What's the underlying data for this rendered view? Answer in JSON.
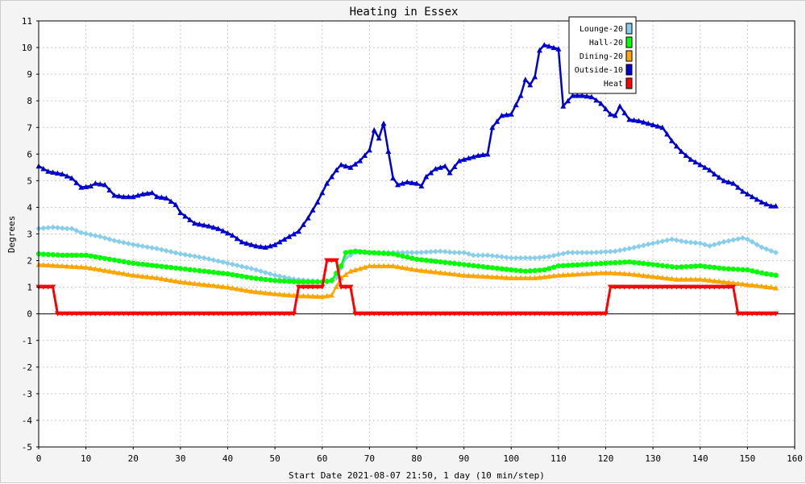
{
  "chart_data": {
    "type": "line",
    "title": "Heating in Essex",
    "xlabel": "Start Date 2021-08-07 21:50, 1 day (10 min/step)",
    "ylabel": "Degrees",
    "xlim": [
      0,
      160
    ],
    "ylim": [
      -5,
      11
    ],
    "x_ticks": [
      0,
      10,
      20,
      30,
      40,
      50,
      60,
      70,
      80,
      90,
      100,
      110,
      120,
      130,
      140,
      150,
      160
    ],
    "y_ticks": [
      -5,
      -4,
      -3,
      -2,
      -1,
      0,
      1,
      2,
      3,
      4,
      5,
      6,
      7,
      8,
      9,
      10,
      11
    ],
    "grid": true,
    "legend_position": "top-right",
    "series": [
      {
        "name": "Lounge-20",
        "color": "#87ceeb",
        "marker": "diamond",
        "points": [
          [
            0,
            3.2
          ],
          [
            3,
            3.25
          ],
          [
            6,
            3.2
          ],
          [
            7,
            3.2
          ],
          [
            9,
            3.05
          ],
          [
            13,
            2.9
          ],
          [
            16,
            2.75
          ],
          [
            20,
            2.6
          ],
          [
            25,
            2.45
          ],
          [
            30,
            2.25
          ],
          [
            35,
            2.1
          ],
          [
            40,
            1.9
          ],
          [
            45,
            1.7
          ],
          [
            50,
            1.45
          ],
          [
            54,
            1.3
          ],
          [
            57,
            1.25
          ],
          [
            61,
            1.2
          ],
          [
            63,
            1.35
          ],
          [
            65,
            2.1
          ],
          [
            67,
            2.3
          ],
          [
            70,
            2.3
          ],
          [
            75,
            2.3
          ],
          [
            80,
            2.3
          ],
          [
            85,
            2.35
          ],
          [
            88,
            2.3
          ],
          [
            90,
            2.3
          ],
          [
            92,
            2.2
          ],
          [
            95,
            2.2
          ],
          [
            100,
            2.1
          ],
          [
            105,
            2.1
          ],
          [
            108,
            2.15
          ],
          [
            112,
            2.3
          ],
          [
            117,
            2.3
          ],
          [
            122,
            2.35
          ],
          [
            125,
            2.45
          ],
          [
            130,
            2.65
          ],
          [
            134,
            2.8
          ],
          [
            137,
            2.7
          ],
          [
            140,
            2.65
          ],
          [
            142,
            2.55
          ],
          [
            145,
            2.7
          ],
          [
            149,
            2.85
          ],
          [
            150,
            2.8
          ],
          [
            153,
            2.5
          ],
          [
            156,
            2.3
          ]
        ]
      },
      {
        "name": "Hall-20",
        "color": "#00ff00",
        "marker": "circle",
        "points": [
          [
            0,
            2.25
          ],
          [
            5,
            2.2
          ],
          [
            10,
            2.2
          ],
          [
            15,
            2.05
          ],
          [
            20,
            1.9
          ],
          [
            25,
            1.8
          ],
          [
            30,
            1.7
          ],
          [
            35,
            1.6
          ],
          [
            40,
            1.5
          ],
          [
            45,
            1.35
          ],
          [
            50,
            1.25
          ],
          [
            55,
            1.2
          ],
          [
            60,
            1.2
          ],
          [
            62,
            1.25
          ],
          [
            64,
            1.8
          ],
          [
            65,
            2.3
          ],
          [
            67,
            2.35
          ],
          [
            70,
            2.3
          ],
          [
            75,
            2.25
          ],
          [
            80,
            2.05
          ],
          [
            85,
            1.95
          ],
          [
            90,
            1.85
          ],
          [
            95,
            1.75
          ],
          [
            100,
            1.65
          ],
          [
            103,
            1.6
          ],
          [
            107,
            1.65
          ],
          [
            110,
            1.8
          ],
          [
            115,
            1.85
          ],
          [
            120,
            1.9
          ],
          [
            125,
            1.95
          ],
          [
            130,
            1.85
          ],
          [
            135,
            1.75
          ],
          [
            140,
            1.8
          ],
          [
            145,
            1.7
          ],
          [
            150,
            1.65
          ],
          [
            154,
            1.5
          ],
          [
            156,
            1.45
          ]
        ]
      },
      {
        "name": "Dining-20",
        "color": "#ffa500",
        "marker": "triangle",
        "points": [
          [
            0,
            1.85
          ],
          [
            5,
            1.8
          ],
          [
            10,
            1.75
          ],
          [
            15,
            1.6
          ],
          [
            20,
            1.45
          ],
          [
            25,
            1.35
          ],
          [
            30,
            1.2
          ],
          [
            35,
            1.1
          ],
          [
            40,
            1.0
          ],
          [
            45,
            0.85
          ],
          [
            50,
            0.75
          ],
          [
            55,
            0.68
          ],
          [
            60,
            0.65
          ],
          [
            62,
            0.7
          ],
          [
            64,
            1.35
          ],
          [
            66,
            1.6
          ],
          [
            70,
            1.8
          ],
          [
            75,
            1.8
          ],
          [
            80,
            1.65
          ],
          [
            85,
            1.55
          ],
          [
            90,
            1.45
          ],
          [
            95,
            1.4
          ],
          [
            100,
            1.35
          ],
          [
            105,
            1.35
          ],
          [
            110,
            1.45
          ],
          [
            115,
            1.5
          ],
          [
            120,
            1.55
          ],
          [
            125,
            1.5
          ],
          [
            130,
            1.4
          ],
          [
            135,
            1.3
          ],
          [
            140,
            1.3
          ],
          [
            145,
            1.2
          ],
          [
            150,
            1.1
          ],
          [
            155,
            1.0
          ],
          [
            156,
            0.97
          ]
        ]
      },
      {
        "name": "Outside-10",
        "color": "#0000cc",
        "marker": "triangle",
        "points": [
          [
            0,
            5.55
          ],
          [
            2,
            5.35
          ],
          [
            5,
            5.25
          ],
          [
            7,
            5.1
          ],
          [
            9,
            4.75
          ],
          [
            11,
            4.8
          ],
          [
            12,
            4.9
          ],
          [
            14,
            4.85
          ],
          [
            16,
            4.45
          ],
          [
            18,
            4.4
          ],
          [
            20,
            4.4
          ],
          [
            22,
            4.5
          ],
          [
            24,
            4.55
          ],
          [
            25,
            4.4
          ],
          [
            27,
            4.35
          ],
          [
            29,
            4.1
          ],
          [
            30,
            3.8
          ],
          [
            33,
            3.4
          ],
          [
            36,
            3.3
          ],
          [
            38,
            3.2
          ],
          [
            41,
            2.95
          ],
          [
            43,
            2.7
          ],
          [
            46,
            2.55
          ],
          [
            48,
            2.5
          ],
          [
            50,
            2.6
          ],
          [
            52,
            2.8
          ],
          [
            55,
            3.1
          ],
          [
            57,
            3.6
          ],
          [
            59,
            4.2
          ],
          [
            61,
            4.9
          ],
          [
            63,
            5.4
          ],
          [
            64,
            5.6
          ],
          [
            66,
            5.5
          ],
          [
            68,
            5.75
          ],
          [
            70,
            6.15
          ],
          [
            71,
            6.9
          ],
          [
            72,
            6.6
          ],
          [
            73,
            7.15
          ],
          [
            74,
            6.1
          ],
          [
            75,
            5.1
          ],
          [
            76,
            4.85
          ],
          [
            78,
            4.95
          ],
          [
            80,
            4.9
          ],
          [
            81,
            4.8
          ],
          [
            82,
            5.15
          ],
          [
            84,
            5.45
          ],
          [
            86,
            5.55
          ],
          [
            87,
            5.3
          ],
          [
            89,
            5.75
          ],
          [
            91,
            5.85
          ],
          [
            93,
            5.95
          ],
          [
            95,
            6.0
          ],
          [
            96,
            7.0
          ],
          [
            98,
            7.45
          ],
          [
            100,
            7.5
          ],
          [
            102,
            8.2
          ],
          [
            103,
            8.8
          ],
          [
            104,
            8.6
          ],
          [
            105,
            8.9
          ],
          [
            106,
            9.9
          ],
          [
            107,
            10.1
          ],
          [
            108,
            10.05
          ],
          [
            110,
            9.95
          ],
          [
            111,
            7.8
          ],
          [
            113,
            8.2
          ],
          [
            115,
            8.2
          ],
          [
            117,
            8.15
          ],
          [
            119,
            7.9
          ],
          [
            121,
            7.5
          ],
          [
            122,
            7.45
          ],
          [
            123,
            7.8
          ],
          [
            125,
            7.3
          ],
          [
            127,
            7.25
          ],
          [
            128,
            7.2
          ],
          [
            130,
            7.1
          ],
          [
            132,
            7.0
          ],
          [
            134,
            6.5
          ],
          [
            136,
            6.1
          ],
          [
            138,
            5.8
          ],
          [
            140,
            5.6
          ],
          [
            142,
            5.4
          ],
          [
            143,
            5.25
          ],
          [
            145,
            5.0
          ],
          [
            147,
            4.9
          ],
          [
            149,
            4.6
          ],
          [
            151,
            4.4
          ],
          [
            153,
            4.2
          ],
          [
            155,
            4.05
          ],
          [
            156,
            4.05
          ]
        ]
      },
      {
        "name": "Heat",
        "color": "#ff0000",
        "marker": "triangle-down",
        "points": [
          [
            0,
            1
          ],
          [
            3,
            1
          ],
          [
            4,
            0
          ],
          [
            54,
            0
          ],
          [
            55,
            1
          ],
          [
            60,
            1
          ],
          [
            61,
            2
          ],
          [
            63,
            2
          ],
          [
            64,
            1
          ],
          [
            66,
            1
          ],
          [
            67,
            0
          ],
          [
            120,
            0
          ],
          [
            121,
            1
          ],
          [
            147,
            1
          ],
          [
            148,
            0
          ],
          [
            156,
            0
          ]
        ]
      }
    ]
  }
}
